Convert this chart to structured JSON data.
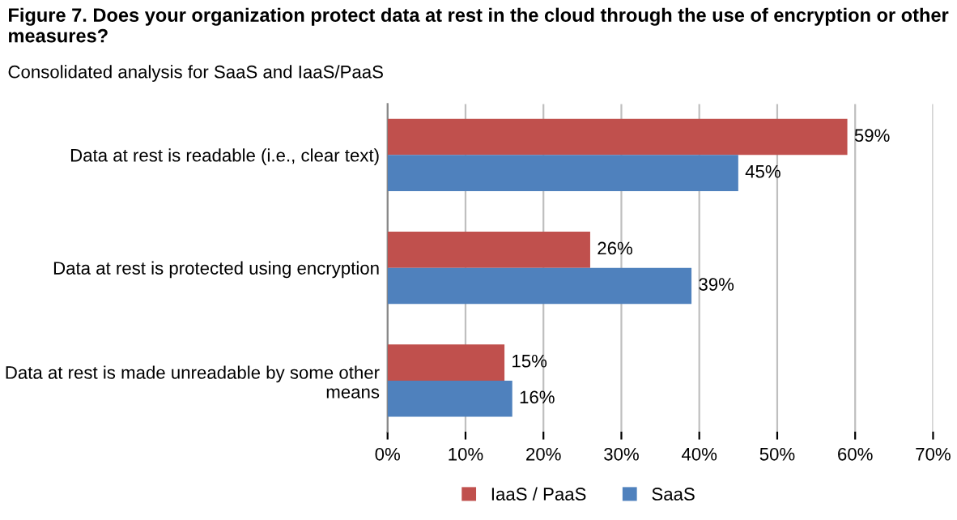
{
  "chart_data": {
    "type": "bar",
    "orientation": "horizontal",
    "title": "Figure 7. Does your organization protect data at rest in the cloud through the use of encryption or other measures?",
    "subtitle": "Consolidated analysis for SaaS and IaaS/PaaS",
    "categories": [
      "Data at rest is readable (i.e., clear text)",
      "Data at rest is protected using encryption",
      "Data at rest is made unreadable by some other\nmeans"
    ],
    "series": [
      {
        "name": "IaaS / PaaS",
        "color": "#c0504d",
        "values": [
          59,
          26,
          15
        ],
        "value_labels": [
          "59%",
          "26%",
          "15%"
        ]
      },
      {
        "name": "SaaS",
        "color": "#4f81bd",
        "values": [
          45,
          39,
          16
        ],
        "value_labels": [
          "45%",
          "39%",
          "16%"
        ]
      }
    ],
    "xlim": [
      0,
      70
    ],
    "xticks": [
      {
        "value": 0,
        "label": "0%"
      },
      {
        "value": 10,
        "label": "10%"
      },
      {
        "value": 20,
        "label": "20%"
      },
      {
        "value": 30,
        "label": "30%"
      },
      {
        "value": 40,
        "label": "40%"
      },
      {
        "value": 50,
        "label": "50%"
      },
      {
        "value": 60,
        "label": "60%"
      },
      {
        "value": 70,
        "label": "70%"
      }
    ],
    "grid": "x",
    "legend": "bottom"
  }
}
